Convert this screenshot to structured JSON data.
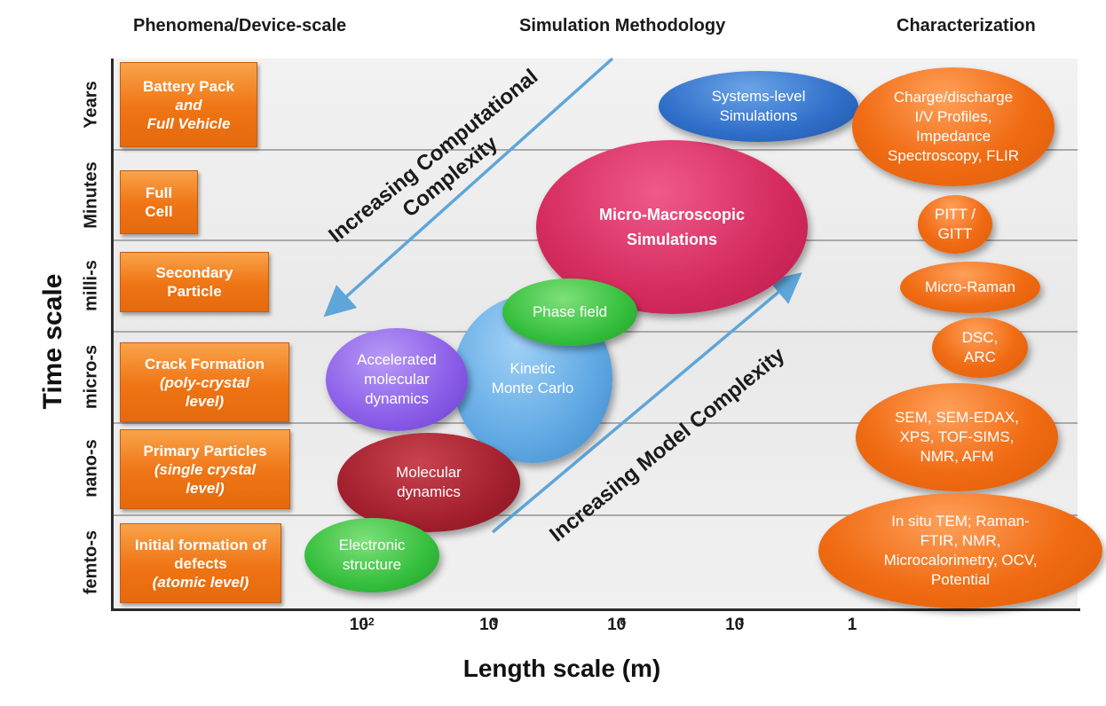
{
  "headers": {
    "phenomena": "Phenomena/Device-scale",
    "methodology": "Simulation Methodology",
    "characterization": "Characterization"
  },
  "y_axis": {
    "title": "Time scale",
    "rows": [
      "Years",
      "Minutes",
      "milli-s",
      "micro-s",
      "nano-s",
      "femto-s"
    ]
  },
  "x_axis": {
    "title": "Length scale (m)",
    "ticks": [
      {
        "base": "10",
        "exp": "-12"
      },
      {
        "base": "10",
        "exp": "-9"
      },
      {
        "base": "10",
        "exp": "-6"
      },
      {
        "base": "10",
        "exp": "-3"
      },
      {
        "base": "1",
        "exp": ""
      }
    ]
  },
  "phenomena": [
    {
      "lines": [
        "Battery Pack"
      ],
      "italic": [
        "and",
        "Full Vehicle"
      ]
    },
    {
      "lines": [
        "Full",
        "Cell"
      ],
      "italic": []
    },
    {
      "lines": [
        "Secondary",
        "Particle"
      ],
      "italic": []
    },
    {
      "lines": [
        "Crack Formation"
      ],
      "italic": [
        "(poly-crystal",
        "level)"
      ]
    },
    {
      "lines": [
        "Primary Particles"
      ],
      "italic": [
        "(single crystal",
        "level)"
      ]
    },
    {
      "lines": [
        "Initial formation of",
        "defects"
      ],
      "italic": [
        "(atomic level)"
      ]
    }
  ],
  "methods": {
    "systems": [
      "Systems-level",
      "Simulations"
    ],
    "micro_macro": [
      "Micro-Macroscopic",
      "Simulations"
    ],
    "phase_field": [
      "Phase field"
    ],
    "kinetic_mc": [
      "Kinetic",
      "Monte Carlo"
    ],
    "accel_md": [
      "Accelerated",
      "molecular",
      "dynamics"
    ],
    "md": [
      "Molecular",
      "dynamics"
    ],
    "electronic": [
      "Electronic",
      "structure"
    ]
  },
  "characterization": [
    [
      "Charge/discharge",
      "I/V Profiles,",
      "Impedance",
      "Spectroscopy, FLIR"
    ],
    [
      "PITT /",
      "GITT"
    ],
    [
      "Micro-Raman"
    ],
    [
      "DSC,",
      "ARC"
    ],
    [
      "SEM, SEM-EDAX,",
      "XPS, TOF-SIMS,",
      "NMR, AFM"
    ],
    [
      "In situ TEM; Raman-",
      "FTIR, NMR,",
      "Microcalorimetry, OCV,",
      "Potential"
    ]
  ],
  "annotations": {
    "computational": [
      "Increasing Computational",
      "Complexity"
    ],
    "model": "Increasing Model Complexity"
  },
  "colors": {
    "orange": "#ef7414",
    "arrow": "#5ea6d9"
  }
}
